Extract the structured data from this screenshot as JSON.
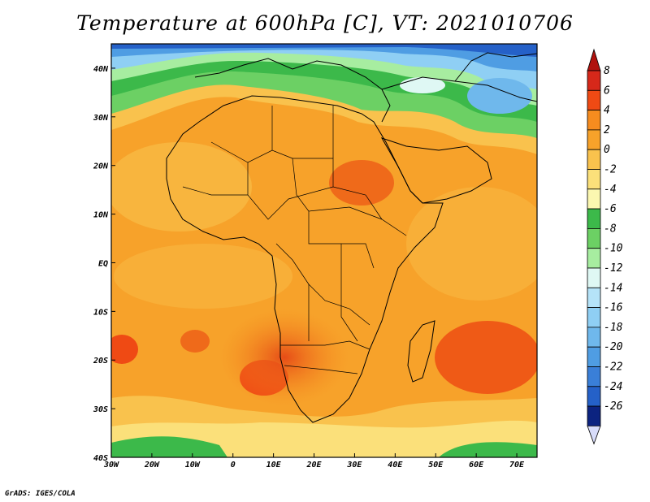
{
  "title": "Temperature at 600hPa [C], VT: 2021010706",
  "credit": "GrADS: IGES/COLA",
  "map": {
    "lon_range": [
      -30,
      75
    ],
    "lat_range": [
      -40,
      45
    ],
    "x_ticks": [
      {
        "value": -30,
        "label": "30W"
      },
      {
        "value": -20,
        "label": "20W"
      },
      {
        "value": -10,
        "label": "10W"
      },
      {
        "value": 0,
        "label": "0"
      },
      {
        "value": 10,
        "label": "10E"
      },
      {
        "value": 20,
        "label": "20E"
      },
      {
        "value": 30,
        "label": "30E"
      },
      {
        "value": 40,
        "label": "40E"
      },
      {
        "value": 50,
        "label": "50E"
      },
      {
        "value": 60,
        "label": "60E"
      },
      {
        "value": 70,
        "label": "70E"
      }
    ],
    "y_ticks": [
      {
        "value": 40,
        "label": "40N"
      },
      {
        "value": 30,
        "label": "30N"
      },
      {
        "value": 20,
        "label": "20N"
      },
      {
        "value": 10,
        "label": "10N"
      },
      {
        "value": 0,
        "label": "EQ"
      },
      {
        "value": -10,
        "label": "10S"
      },
      {
        "value": -20,
        "label": "20S"
      },
      {
        "value": -30,
        "label": "30S"
      },
      {
        "value": -40,
        "label": "40S"
      }
    ]
  },
  "colorbar": {
    "levels": [
      {
        "label": "8",
        "color": "#d6281a"
      },
      {
        "label": "6",
        "color": "#ef4a14"
      },
      {
        "label": "4",
        "color": "#f68c1f"
      },
      {
        "label": "2",
        "color": "#f7a22a"
      },
      {
        "label": "0",
        "color": "#f9c24d"
      },
      {
        "label": "-2",
        "color": "#fbe07a"
      },
      {
        "label": "-4",
        "color": "#fbf7b0"
      },
      {
        "label": "-6",
        "color": "#3cb94a"
      },
      {
        "label": "-8",
        "color": "#6cd064"
      },
      {
        "label": "-10",
        "color": "#a7eda0"
      },
      {
        "label": "-12",
        "color": "#dff8f4"
      },
      {
        "label": "-14",
        "color": "#b5e3f8"
      },
      {
        "label": "-16",
        "color": "#8fcff4"
      },
      {
        "label": "-18",
        "color": "#6fb8ec"
      },
      {
        "label": "-20",
        "color": "#4f9de3"
      },
      {
        "label": "-22",
        "color": "#3a7fd8"
      },
      {
        "label": "-24",
        "color": "#2561c8"
      },
      {
        "label": "-26",
        "color": "#1d46b3"
      }
    ],
    "top_arrow_color": "#b0120e",
    "bottom_arrow_color": "#d8dcfa",
    "bottom_band_color": "#0c2380"
  }
}
